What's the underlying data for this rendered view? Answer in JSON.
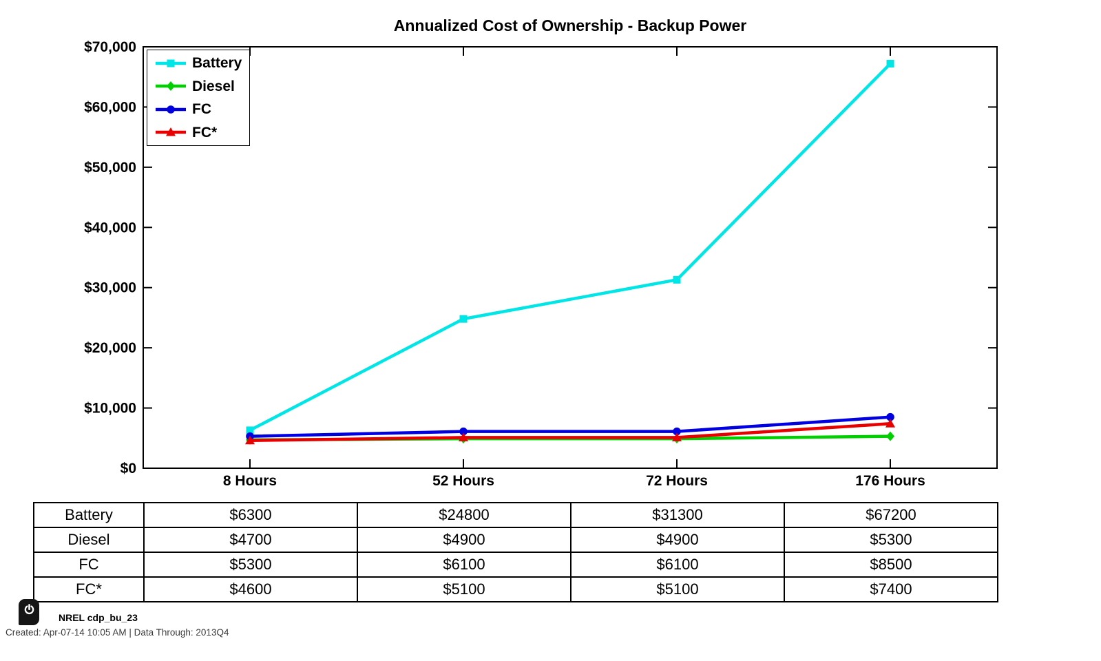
{
  "title": "Annualized Cost of Ownership - Backup Power",
  "chart_data": {
    "type": "line",
    "title": "Annualized Cost of Ownership - Backup Power",
    "categories": [
      "8 Hours",
      "52 Hours",
      "72 Hours",
      "176 Hours"
    ],
    "series": [
      {
        "name": "Battery",
        "values": [
          6300,
          24800,
          31300,
          67200
        ],
        "color": "#00E5E5",
        "marker": "square"
      },
      {
        "name": "Diesel",
        "values": [
          4700,
          4900,
          4900,
          5300
        ],
        "color": "#00D000",
        "marker": "diamond"
      },
      {
        "name": "FC",
        "values": [
          5300,
          6100,
          6100,
          8500
        ],
        "color": "#0000E0",
        "marker": "circle"
      },
      {
        "name": "FC*",
        "values": [
          4600,
          5100,
          5100,
          7400
        ],
        "color": "#E80000",
        "marker": "triangle"
      }
    ],
    "xlabel": "",
    "ylabel": "",
    "ylim": [
      0,
      70000
    ],
    "ytick_labels": [
      "$0",
      "$10,000",
      "$20,000",
      "$30,000",
      "$40,000",
      "$50,000",
      "$60,000",
      "$70,000"
    ],
    "legend_position": "top-left",
    "grid": false,
    "axis_color": "#000000"
  },
  "table": {
    "rows": [
      {
        "label": "Battery",
        "cells": [
          "$6300",
          "$24800",
          "$31300",
          "$67200"
        ]
      },
      {
        "label": "Diesel",
        "cells": [
          "$4700",
          "$4900",
          "$4900",
          "$5300"
        ]
      },
      {
        "label": "FC",
        "cells": [
          "$5300",
          "$6100",
          "$6100",
          "$8500"
        ]
      },
      {
        "label": "FC*",
        "cells": [
          "$4600",
          "$5100",
          "$5100",
          "$7400"
        ]
      }
    ]
  },
  "footer": {
    "dataset_label": "NREL cdp_bu_23",
    "created_line": "Created: Apr-07-14 10:05 AM | Data Through: 2013Q4"
  },
  "icons": {
    "power": "power-icon"
  }
}
